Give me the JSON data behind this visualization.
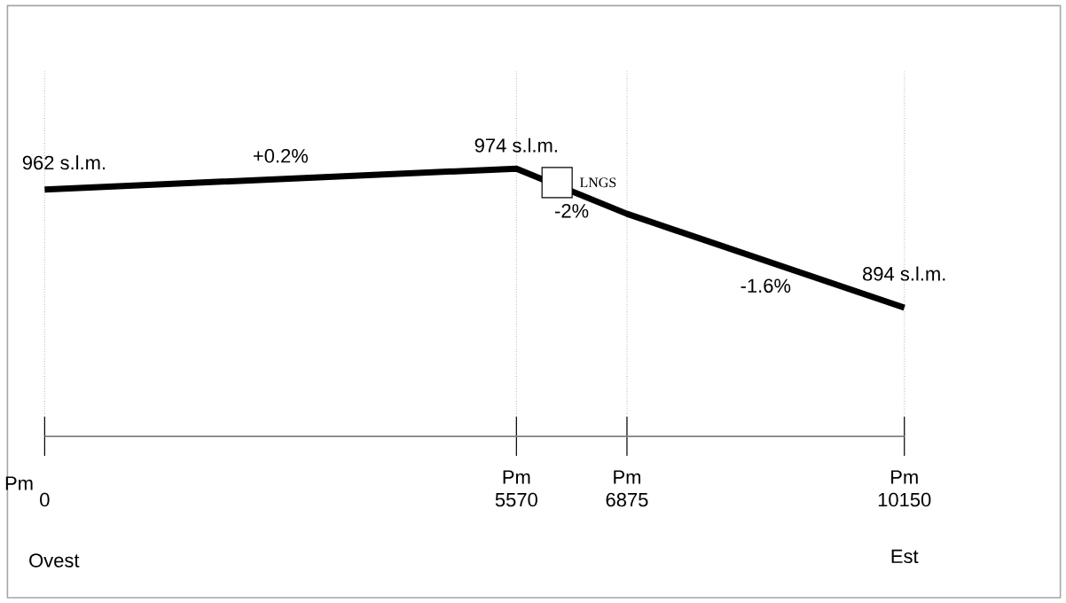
{
  "chart_data": {
    "type": "line",
    "x": [
      0,
      5570,
      6875,
      10150
    ],
    "series": [
      {
        "color": "#000000",
        "values": [
          962,
          974,
          948,
          894
        ],
        "value_labels": [
          "962 s.l.m.",
          "974 s.l.m.",
          null,
          "894 s.l.m."
        ]
      }
    ],
    "xlim": [
      0,
      10150
    ],
    "ylim": [
      820,
      1030
    ],
    "xticks": [
      0,
      5570,
      6875,
      10150
    ],
    "tick_labels": "x",
    "grid": "x",
    "annotations": [
      {
        "text": "+0.2%",
        "x": 2785,
        "y": 968
      },
      {
        "text": "-2%",
        "x": 6222,
        "y": 961
      },
      {
        "text": "-1.6%",
        "x": 8512,
        "y": 921
      },
      {
        "text": "LNGS",
        "x": 6050,
        "y": 966
      },
      "Pm",
      "Pm",
      "Pm",
      "Pm",
      "Ovest",
      "Est"
    ]
  }
}
